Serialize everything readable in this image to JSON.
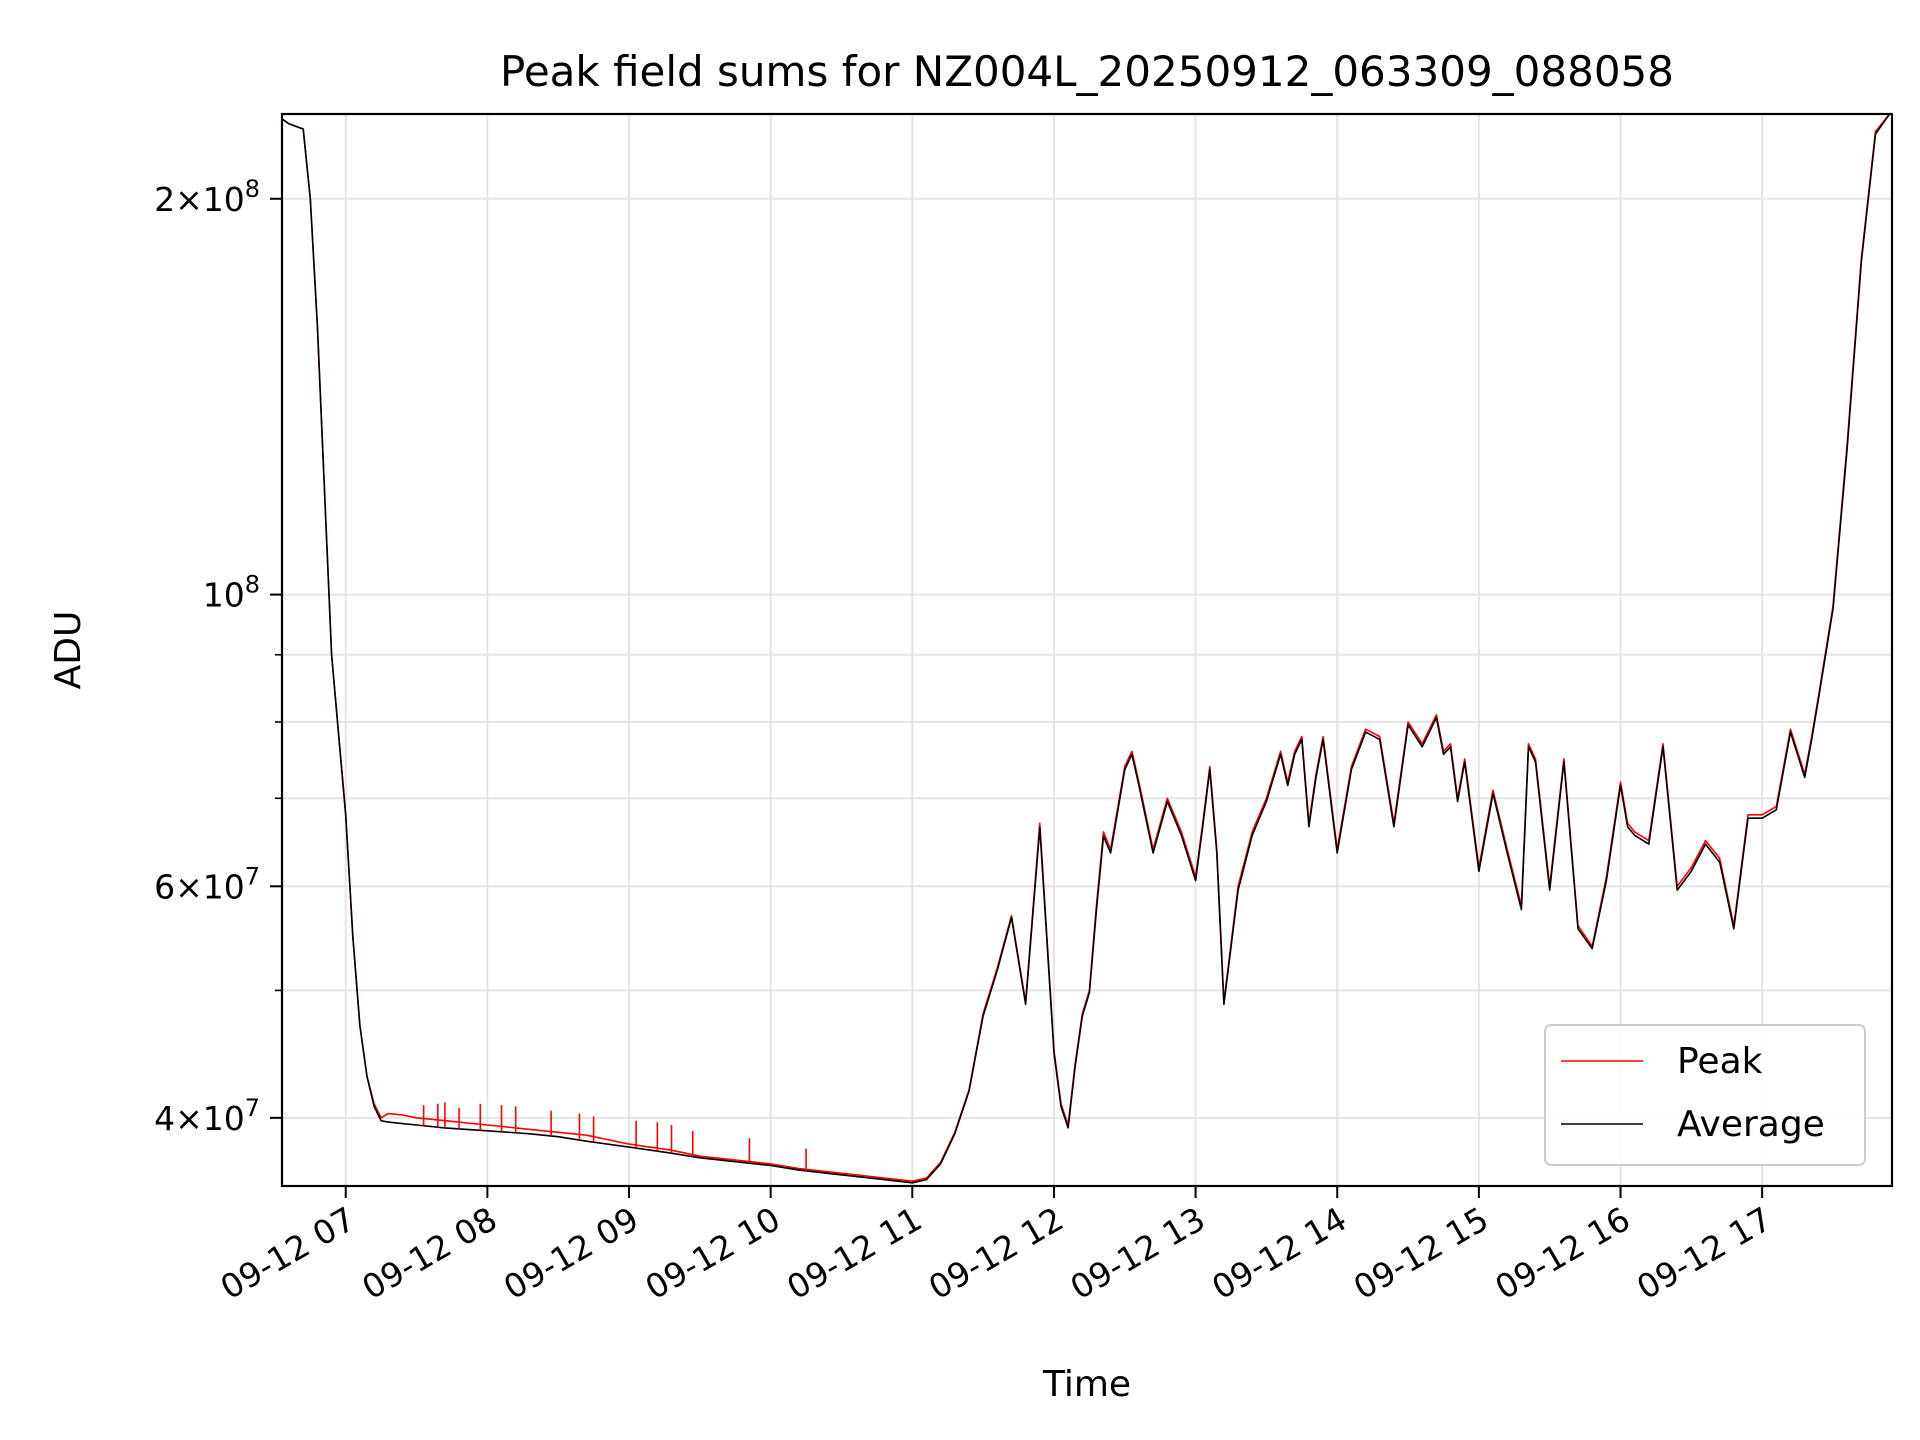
{
  "chart_data": {
    "type": "line",
    "title": "Peak field sums for NZ004L_20250912_063309_088058",
    "xlabel": "Time",
    "ylabel": "ADU",
    "yscale": "log",
    "xlim": [
      "2025-09-12 06:33",
      "2025-09-12 17:55"
    ],
    "ylim": [
      35500000,
      232000000
    ],
    "grid": true,
    "legend_position": "lower-right",
    "x_ticks": [
      "09-12 07",
      "09-12 08",
      "09-12 09",
      "09-12 10",
      "09-12 11",
      "09-12 12",
      "09-12 13",
      "09-12 14",
      "09-12 15",
      "09-12 16",
      "09-12 17"
    ],
    "y_ticks": [
      {
        "value": 200000000,
        "label": "2 × 10^8"
      },
      {
        "value": 100000000,
        "label": "10^8"
      },
      {
        "value": 60000000,
        "label": "6 × 10^7"
      },
      {
        "value": 40000000,
        "label": "4 × 10^7"
      }
    ],
    "x_hours": [
      6.55,
      6.6,
      6.7,
      6.75,
      6.8,
      6.85,
      6.9,
      7.0,
      7.05,
      7.1,
      7.15,
      7.2,
      7.25,
      7.3,
      7.4,
      7.5,
      7.7,
      8.0,
      8.3,
      8.5,
      8.7,
      9.0,
      9.3,
      9.5,
      9.8,
      10.0,
      10.2,
      10.4,
      10.6,
      10.8,
      11.0,
      11.1,
      11.2,
      11.3,
      11.4,
      11.5,
      11.6,
      11.7,
      11.8,
      11.9,
      12.0,
      12.05,
      12.1,
      12.15,
      12.2,
      12.25,
      12.3,
      12.35,
      12.4,
      12.5,
      12.55,
      12.6,
      12.7,
      12.8,
      12.9,
      13.0,
      13.05,
      13.1,
      13.15,
      13.2,
      13.3,
      13.4,
      13.5,
      13.6,
      13.65,
      13.7,
      13.75,
      13.8,
      13.85,
      13.9,
      14.0,
      14.1,
      14.2,
      14.3,
      14.4,
      14.5,
      14.6,
      14.7,
      14.75,
      14.8,
      14.85,
      14.9,
      15.0,
      15.1,
      15.2,
      15.3,
      15.35,
      15.4,
      15.5,
      15.6,
      15.7,
      15.8,
      15.9,
      16.0,
      16.05,
      16.1,
      16.2,
      16.3,
      16.4,
      16.5,
      16.6,
      16.7,
      16.8,
      16.9,
      17.0,
      17.1,
      17.2,
      17.3,
      17.35,
      17.4,
      17.5,
      17.6,
      17.7,
      17.8,
      17.9
    ],
    "series": [
      {
        "name": "Peak",
        "color": "#ff0000",
        "values": [
          230000000,
          228000000,
          226000000,
          200000000,
          160000000,
          120000000,
          90000000,
          68000000,
          55000000,
          47000000,
          43000000,
          41000000,
          40000000,
          40300000,
          40200000,
          40000000,
          39800000,
          39500000,
          39200000,
          39000000,
          38800000,
          38200000,
          37800000,
          37400000,
          37100000,
          36900000,
          36600000,
          36400000,
          36200000,
          36000000,
          35800000,
          36000000,
          37000000,
          39000000,
          42000000,
          48000000,
          52000000,
          57000000,
          49000000,
          67000000,
          45000000,
          41000000,
          39500000,
          44000000,
          48000000,
          50000000,
          58000000,
          66000000,
          64000000,
          74000000,
          76000000,
          72000000,
          64000000,
          70000000,
          66000000,
          61000000,
          67000000,
          74000000,
          64000000,
          49000000,
          60000000,
          66000000,
          70000000,
          76000000,
          72000000,
          76000000,
          78000000,
          67000000,
          73000000,
          78000000,
          64000000,
          74000000,
          79000000,
          78000000,
          67000000,
          80000000,
          77000000,
          81000000,
          76000000,
          77000000,
          70000000,
          75000000,
          62000000,
          71000000,
          64000000,
          58000000,
          77000000,
          75000000,
          60000000,
          75000000,
          56000000,
          54000000,
          61000000,
          72000000,
          67000000,
          66000000,
          65000000,
          77000000,
          60000000,
          62000000,
          65000000,
          63000000,
          56000000,
          68000000,
          68000000,
          69000000,
          79000000,
          73000000,
          78000000,
          84000000,
          98000000,
          130000000,
          180000000,
          225000000,
          232000000
        ]
      },
      {
        "name": "Average",
        "color": "#000000",
        "values": [
          230000000,
          228000000,
          226000000,
          200000000,
          160000000,
          120000000,
          90000000,
          68000000,
          55000000,
          47000000,
          43000000,
          40800000,
          39800000,
          39700000,
          39600000,
          39500000,
          39300000,
          39100000,
          38900000,
          38700000,
          38400000,
          38000000,
          37600000,
          37300000,
          37000000,
          36800000,
          36500000,
          36300000,
          36100000,
          35900000,
          35700000,
          35900000,
          36900000,
          38900000,
          41900000,
          47800000,
          51800000,
          56800000,
          48800000,
          66500000,
          44800000,
          40800000,
          39300000,
          43800000,
          47800000,
          49800000,
          57500000,
          65500000,
          63600000,
          73600000,
          75600000,
          71600000,
          63600000,
          69600000,
          65600000,
          60600000,
          66600000,
          73600000,
          63600000,
          48800000,
          59600000,
          65600000,
          69600000,
          75600000,
          71600000,
          75600000,
          77600000,
          66600000,
          72600000,
          77600000,
          63600000,
          73600000,
          78600000,
          77600000,
          66600000,
          79600000,
          76600000,
          80600000,
          75600000,
          76600000,
          69600000,
          74600000,
          61600000,
          70600000,
          63600000,
          57600000,
          76600000,
          74600000,
          59600000,
          74600000,
          55700000,
          53800000,
          60600000,
          71600000,
          66600000,
          65600000,
          64600000,
          76600000,
          59600000,
          61600000,
          64600000,
          62600000,
          55700000,
          67600000,
          67600000,
          68600000,
          78600000,
          72600000,
          77600000,
          83600000,
          97500000,
          129000000,
          179000000,
          224000000,
          232000000
        ]
      }
    ],
    "peak_spikes": [
      {
        "x": 7.55,
        "y": 40900000
      },
      {
        "x": 7.65,
        "y": 41000000
      },
      {
        "x": 7.7,
        "y": 41100000
      },
      {
        "x": 7.8,
        "y": 40700000
      },
      {
        "x": 7.95,
        "y": 41000000
      },
      {
        "x": 8.1,
        "y": 40900000
      },
      {
        "x": 8.2,
        "y": 40800000
      },
      {
        "x": 8.45,
        "y": 40500000
      },
      {
        "x": 8.65,
        "y": 40300000
      },
      {
        "x": 8.75,
        "y": 40100000
      },
      {
        "x": 9.05,
        "y": 39800000
      },
      {
        "x": 9.2,
        "y": 39700000
      },
      {
        "x": 9.3,
        "y": 39500000
      },
      {
        "x": 9.45,
        "y": 39100000
      },
      {
        "x": 9.85,
        "y": 38600000
      },
      {
        "x": 10.25,
        "y": 37900000
      }
    ]
  }
}
